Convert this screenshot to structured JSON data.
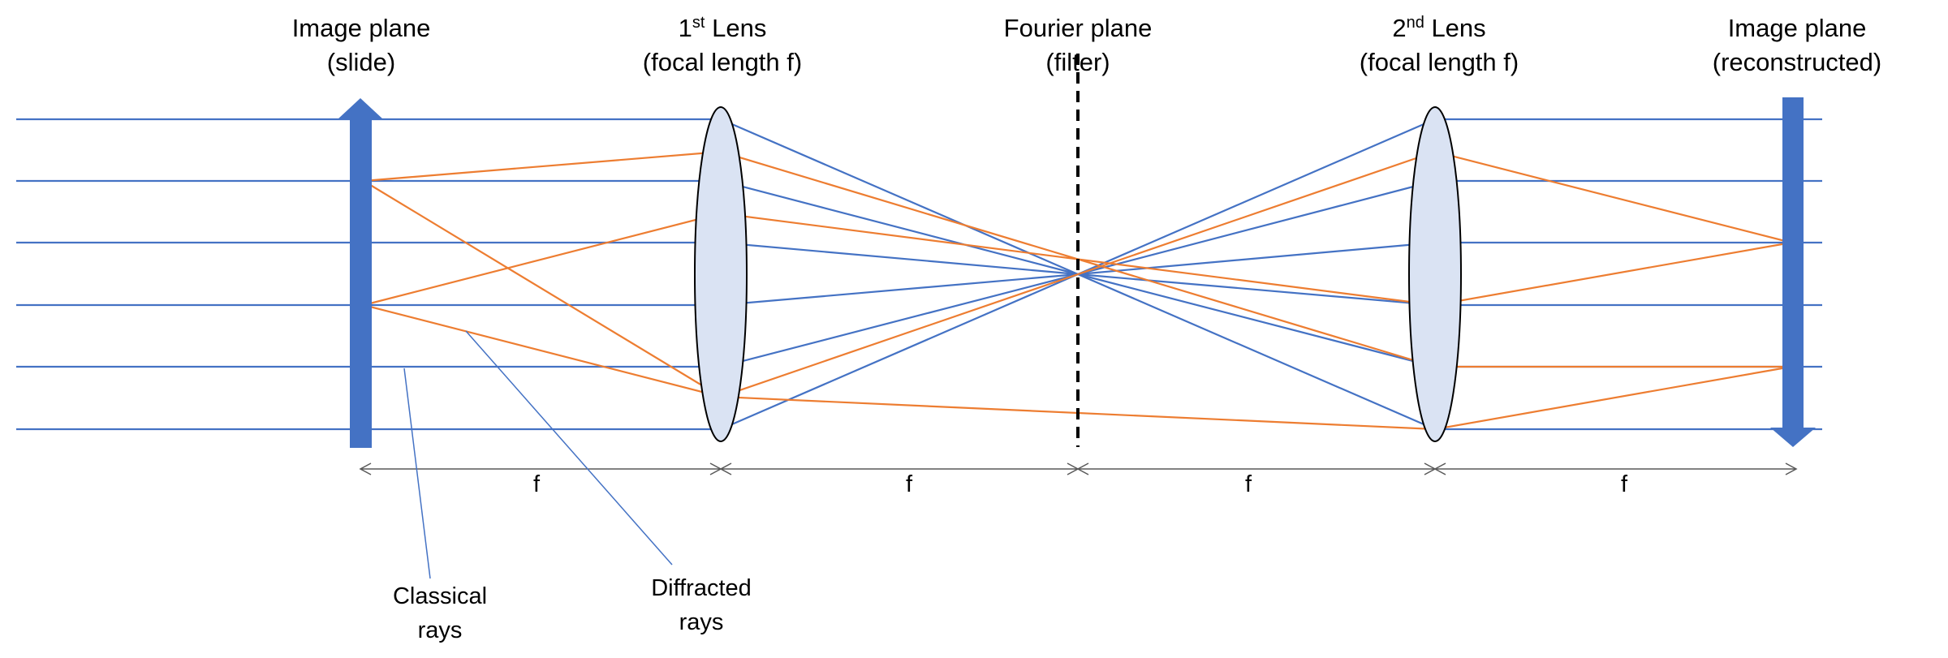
{
  "headers": {
    "slide_plane": {
      "line1": "Image plane",
      "line2": "(slide)"
    },
    "lens1": {
      "ordinal_num": "1",
      "ordinal_sup": "st",
      "line1_rest": " Lens",
      "line2": "(focal length f)"
    },
    "fourier_plane": {
      "line1": "Fourier plane",
      "line2": "(filter)"
    },
    "lens2": {
      "ordinal_num": "2",
      "ordinal_sup": "nd",
      "line1_rest": " Lens",
      "line2": "(focal length f)"
    },
    "reconstructed_plane": {
      "line1": "Image plane",
      "line2": "(reconstructed)"
    }
  },
  "distances": {
    "seg1": "f",
    "seg2": "f",
    "seg3": "f",
    "seg4": "f"
  },
  "annotations": {
    "classical": {
      "line1": "Classical",
      "line2": "rays"
    },
    "diffracted": {
      "line1": "Diffracted",
      "line2": "rays"
    }
  },
  "colors": {
    "classical_ray": "#4472C4",
    "diffracted_ray": "#ED7D31",
    "lens_fill": "#DAE3F3",
    "image_arrow": "#4472C4",
    "filter_line": "#000000",
    "dimension_line": "#595959"
  }
}
